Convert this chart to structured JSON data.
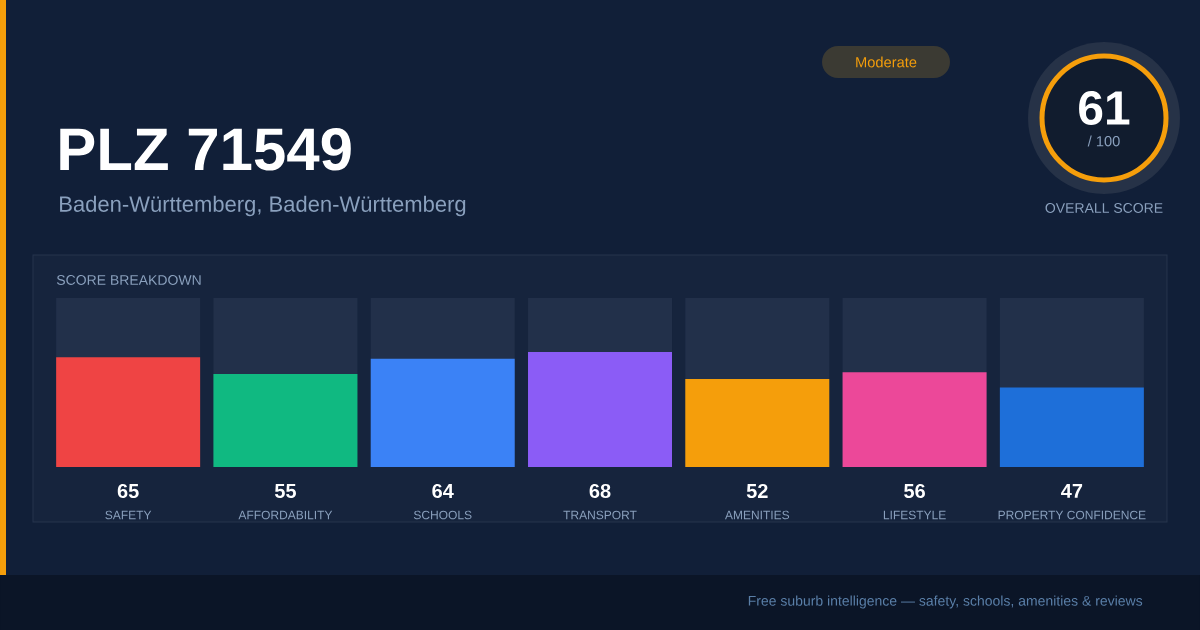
{
  "chart_data": {
    "type": "bar",
    "title": "PLZ 71549",
    "subtitle": "Baden-Württemberg, Baden-Württemberg",
    "annotations": [
      "Moderate",
      "61",
      "/ 100",
      "OVERALL SCORE",
      "SCORE BREAKDOWN",
      "Free suburb intelligence — safety, schools, amenities & reviews"
    ],
    "categories": [
      "SAFETY",
      "AFFORDABILITY",
      "SCHOOLS",
      "TRANSPORT",
      "AMENITIES",
      "LIFESTYLE",
      "PROPERTY CONFIDENCE"
    ],
    "values": [
      65,
      55,
      64,
      68,
      52,
      56,
      47
    ],
    "colors": [
      "#ef4444",
      "#10b981",
      "#3b82f6",
      "#8b5cf6",
      "#f59e0b",
      "#ec4899",
      "#1e6fd9"
    ],
    "ylim": [
      0,
      100
    ],
    "data_labels": true,
    "tick_labels": "x"
  }
}
